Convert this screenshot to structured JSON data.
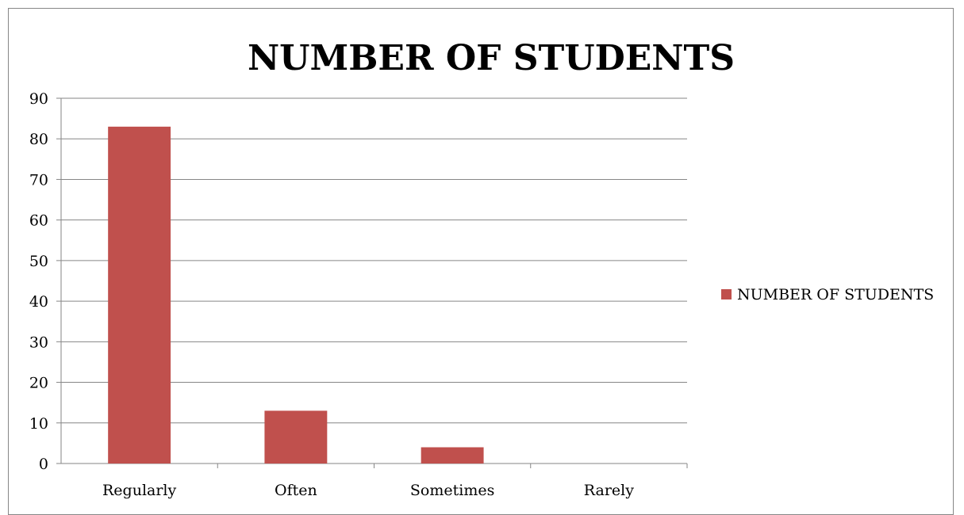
{
  "chart_data": {
    "type": "bar",
    "title": "NUMBER OF STUDENTS",
    "xlabel": "",
    "ylabel": "",
    "categories": [
      "Regularly",
      "Often",
      "Sometimes",
      "Rarely"
    ],
    "series": [
      {
        "name": "NUMBER OF STUDENTS",
        "values": [
          83,
          13,
          4,
          0
        ],
        "color": "#c0504d"
      }
    ],
    "ylim": [
      0,
      90
    ],
    "yticks": [
      0,
      10,
      20,
      30,
      40,
      50,
      60,
      70,
      80,
      90
    ],
    "grid": true,
    "gridline_color": "#868686",
    "legend_position": "right"
  }
}
